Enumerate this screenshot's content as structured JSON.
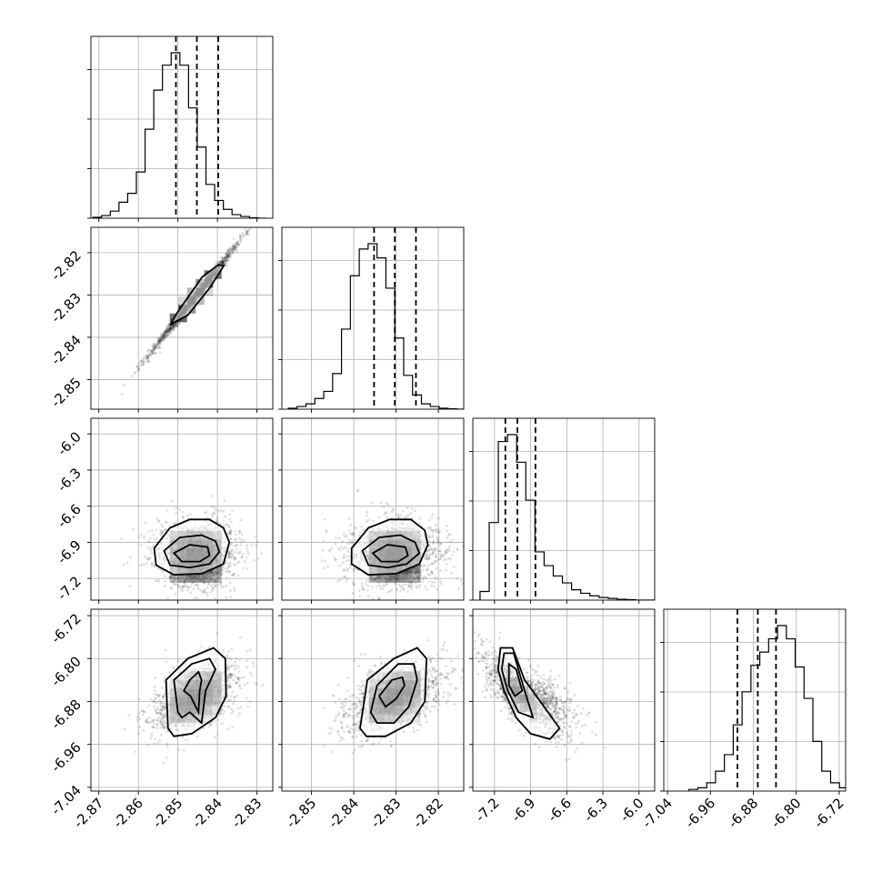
{
  "chart_data": {
    "type": "corner",
    "parameters": [
      {
        "range": [
          -2.872,
          -2.826
        ],
        "ticks": [
          "-2.87",
          "-2.86",
          "-2.85",
          "-2.84",
          "-2.83"
        ],
        "tick_values": [
          -2.87,
          -2.86,
          -2.85,
          -2.84,
          -2.83
        ],
        "quantiles": [
          -2.8505,
          -2.8452,
          -2.8398
        ],
        "histogram": {
          "start": -2.8715,
          "bin_width": 0.0022,
          "counts": [
            0.5,
            1.5,
            4,
            9,
            14,
            26,
            50,
            72,
            86,
            93,
            86,
            62,
            40,
            19,
            10,
            5,
            2,
            1,
            0.3,
            0
          ]
        }
      },
      {
        "range": [
          -2.857,
          -2.814
        ],
        "ticks": [
          "-2.85",
          "-2.84",
          "-2.83",
          "-2.82"
        ],
        "tick_values": [
          -2.85,
          -2.84,
          -2.83,
          -2.82
        ],
        "quantiles": [
          -2.8352,
          -2.8303,
          -2.8253
        ],
        "histogram": {
          "start": -2.8555,
          "bin_width": 0.0021,
          "counts": [
            0.5,
            1.5,
            3,
            6,
            10,
            20,
            45,
            75,
            90,
            93,
            85,
            68,
            40,
            19,
            8,
            3,
            1.5,
            0.5,
            0.2,
            0
          ]
        }
      },
      {
        "range": [
          -7.38,
          -5.87
        ],
        "ticks": [
          "-7.2",
          "-6.9",
          "-6.6",
          "-6.3",
          "-6.0"
        ],
        "tick_values": [
          -7.2,
          -6.9,
          -6.6,
          -6.3,
          -6.0
        ],
        "quantiles": [
          -7.11,
          -7.01,
          -6.86
        ],
        "histogram": {
          "start": -7.32,
          "bin_width": 0.076,
          "counts": [
            5,
            45,
            92,
            96,
            80,
            58,
            28,
            20,
            14,
            10,
            6,
            4,
            2.5,
            1.5,
            1,
            0.5,
            0.3,
            0,
            0,
            0
          ]
        }
      },
      {
        "range": [
          -7.047,
          -6.708
        ],
        "ticks": [
          "-7.04",
          "-6.96",
          "-6.88",
          "-6.80",
          "-6.72"
        ],
        "tick_values": [
          -7.04,
          -6.96,
          -6.88,
          -6.8,
          -6.72
        ],
        "quantiles": [
          -6.9097,
          -6.8717,
          -6.8378
        ],
        "histogram": {
          "start": -7.0,
          "bin_width": 0.0165,
          "counts": [
            1,
            2,
            5,
            12,
            22,
            40,
            60,
            76,
            84,
            92,
            100,
            92,
            75,
            56,
            30,
            12,
            5,
            2,
            0.5,
            0
          ]
        }
      }
    ],
    "pairs": [
      {
        "row": 1,
        "col": 0,
        "center": [
          -2.8455,
          -2.8303
        ],
        "sd": [
          0.0058,
          0.0068
        ],
        "corr": 0.995,
        "peak_sigma": 1.0,
        "contours": [
          [
            -2.851,
            -2.8365,
            -2.8475,
            -2.8348,
            -2.842,
            -2.8284,
            -2.8384,
            -2.8231,
            -2.8398,
            -2.8229,
            -2.8438,
            -2.8257,
            -2.8502,
            -2.8342,
            -2.852,
            -2.8371
          ]
        ]
      },
      {
        "row": 2,
        "col": 0,
        "center": [
          -2.8455,
          -7.02
        ],
        "sd": [
          0.0055,
          0.16
        ],
        "corr": 0.0,
        "peak_sigma": 1.0,
        "contours": [
          [
            -2.856,
            -6.95,
            -2.852,
            -6.78,
            -2.847,
            -6.71,
            -2.842,
            -6.71,
            -2.8385,
            -6.78,
            -2.837,
            -6.9,
            -2.8385,
            -7.08,
            -2.844,
            -7.16,
            -2.851,
            -7.17,
            -2.8555,
            -7.09
          ],
          [
            -2.8535,
            -6.97,
            -2.8495,
            -6.86,
            -2.844,
            -6.84,
            -2.8405,
            -6.89,
            -2.8395,
            -6.98,
            -2.842,
            -7.08,
            -2.847,
            -7.11,
            -2.852,
            -7.09
          ],
          [
            -2.851,
            -6.99,
            -2.847,
            -6.92,
            -2.8425,
            -6.94,
            -2.842,
            -7.01,
            -2.8445,
            -7.06,
            -2.849,
            -7.06
          ]
        ]
      },
      {
        "row": 2,
        "col": 1,
        "center": [
          -2.8303,
          -7.02
        ],
        "sd": [
          0.0058,
          0.16
        ],
        "corr": 0.0,
        "peak_sigma": 1.0,
        "contours": [
          [
            -2.8405,
            -6.95,
            -2.8365,
            -6.78,
            -2.8315,
            -6.71,
            -2.8265,
            -6.71,
            -2.8232,
            -6.8,
            -2.8225,
            -6.92,
            -2.8245,
            -7.08,
            -2.83,
            -7.16,
            -2.8365,
            -7.17,
            -2.8405,
            -7.08
          ],
          [
            -2.838,
            -6.97,
            -2.834,
            -6.86,
            -2.829,
            -6.84,
            -2.8255,
            -6.9,
            -2.8245,
            -6.99,
            -2.8275,
            -7.08,
            -2.832,
            -7.11,
            -2.8365,
            -7.09
          ],
          [
            -2.8355,
            -6.99,
            -2.832,
            -6.92,
            -2.8278,
            -6.94,
            -2.8272,
            -7.01,
            -2.8295,
            -7.06,
            -2.8335,
            -7.06
          ]
        ]
      },
      {
        "row": 3,
        "col": 0,
        "center": [
          -2.8455,
          -6.872
        ],
        "sd": [
          0.0055,
          0.034
        ],
        "corr": 0.5,
        "peak_sigma": 1.0,
        "contours": [
          [
            -2.8525,
            -6.93,
            -2.853,
            -6.84,
            -2.8475,
            -6.8,
            -2.841,
            -6.78,
            -2.838,
            -6.8,
            -2.8378,
            -6.87,
            -2.8405,
            -6.91,
            -2.8465,
            -6.94,
            -2.851,
            -6.945
          ],
          [
            -2.85,
            -6.9,
            -2.851,
            -6.84,
            -2.8465,
            -6.81,
            -2.842,
            -6.8,
            -2.8405,
            -6.82,
            -2.843,
            -6.86,
            -2.844,
            -6.92,
            -2.847,
            -6.9,
            -2.849,
            -6.91
          ],
          [
            -2.8485,
            -6.86,
            -2.847,
            -6.84,
            -2.8448,
            -6.825,
            -2.844,
            -6.84,
            -2.8445,
            -6.86,
            -2.8448,
            -6.9,
            -2.8468,
            -6.87
          ]
        ]
      },
      {
        "row": 3,
        "col": 1,
        "center": [
          -2.8303,
          -6.872
        ],
        "sd": [
          0.0058,
          0.034
        ],
        "corr": 0.5,
        "peak_sigma": 1.0,
        "contours": [
          [
            -2.8385,
            -6.93,
            -2.8368,
            -6.84,
            -2.8305,
            -6.8,
            -2.825,
            -6.78,
            -2.8228,
            -6.8,
            -2.8232,
            -6.88,
            -2.8265,
            -6.92,
            -2.8325,
            -6.945,
            -2.837,
            -6.945
          ],
          [
            -2.836,
            -6.9,
            -2.8345,
            -6.85,
            -2.8295,
            -6.81,
            -2.8258,
            -6.81,
            -2.825,
            -6.84,
            -2.827,
            -6.89,
            -2.8305,
            -6.92,
            -2.8345,
            -6.92
          ],
          [
            -2.834,
            -6.87,
            -2.831,
            -6.84,
            -2.8285,
            -6.835,
            -2.828,
            -6.85,
            -2.83,
            -6.875,
            -2.8325,
            -6.89
          ]
        ]
      },
      {
        "row": 3,
        "col": 2,
        "center": [
          -6.99,
          -6.867
        ],
        "sd": [
          0.14,
          0.037
        ],
        "corr": -0.72,
        "peak_sigma": 0.6,
        "contours": [
          [
            -7.15,
            -6.78,
            -7.05,
            -6.78,
            -6.95,
            -6.84,
            -6.82,
            -6.88,
            -6.66,
            -6.93,
            -6.74,
            -6.95,
            -6.9,
            -6.94,
            -7.02,
            -6.91,
            -7.12,
            -6.86,
            -7.17,
            -6.82
          ],
          [
            -7.12,
            -6.79,
            -7.04,
            -6.79,
            -6.95,
            -6.86,
            -6.88,
            -6.91,
            -7.0,
            -6.9,
            -7.09,
            -6.86,
            -7.14,
            -6.82
          ],
          [
            -7.08,
            -6.81,
            -7.02,
            -6.82,
            -6.97,
            -6.86,
            -7.03,
            -6.87,
            -7.08,
            -6.85
          ]
        ]
      }
    ]
  }
}
